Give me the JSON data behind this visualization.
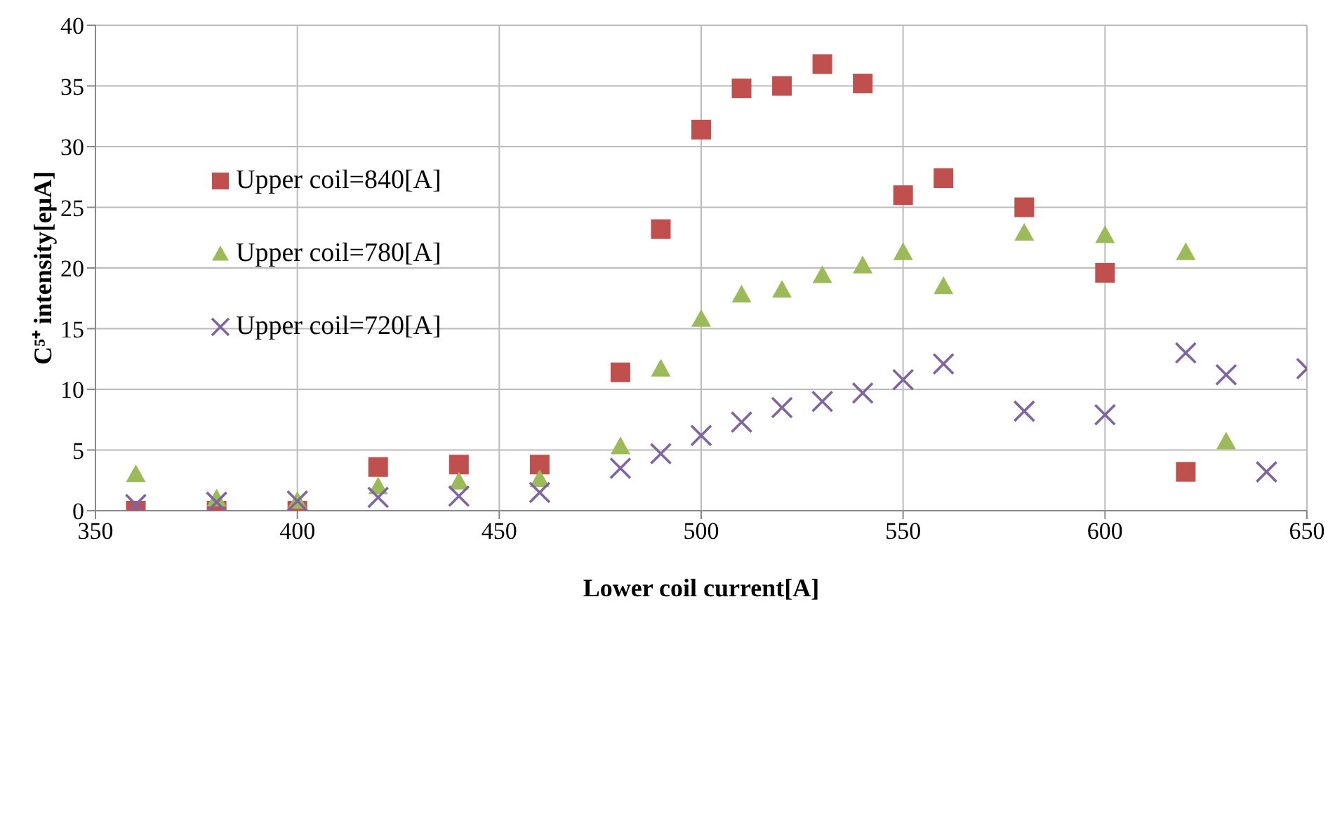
{
  "chart_data": {
    "type": "scatter",
    "xlabel": "Lower coil current[A]",
    "ylabel": "C⁵⁺ intensity[eμA]",
    "xlim": [
      350,
      650
    ],
    "xticks": [
      350,
      400,
      450,
      500,
      550,
      600,
      650
    ],
    "ylim": [
      0,
      40
    ],
    "yticks": [
      0,
      5,
      10,
      15,
      20,
      25,
      30,
      35,
      40
    ],
    "grid": true,
    "legend": "left",
    "series": [
      {
        "name": "Upper coil=840[A]",
        "color": "#c0504d",
        "marker": "square",
        "x": [
          360,
          380,
          400,
          420,
          440,
          460,
          480,
          490,
          500,
          510,
          520,
          530,
          540,
          550,
          560,
          580,
          600,
          620
        ],
        "values": [
          0,
          0,
          0,
          3.6,
          3.8,
          3.8,
          11.4,
          23.2,
          31.4,
          34.8,
          35.0,
          36.8,
          35.2,
          26.0,
          27.4,
          25.0,
          19.6,
          3.2
        ]
      },
      {
        "name": "Upper coil=780[A]",
        "color": "#9bbb59",
        "marker": "triangle",
        "x": [
          360,
          380,
          400,
          420,
          440,
          460,
          480,
          490,
          500,
          510,
          520,
          530,
          540,
          550,
          560,
          580,
          600,
          620,
          630
        ],
        "values": [
          3.0,
          1.0,
          0.8,
          2.0,
          2.4,
          2.6,
          5.3,
          11.7,
          15.8,
          17.8,
          18.2,
          19.4,
          20.2,
          21.3,
          18.5,
          22.9,
          22.7,
          21.3,
          5.7
        ]
      },
      {
        "name": "Upper coil=720[A]",
        "color": "#8064a2",
        "marker": "cross",
        "x": [
          360,
          380,
          400,
          420,
          440,
          460,
          480,
          490,
          500,
          510,
          520,
          530,
          540,
          550,
          560,
          580,
          600,
          620,
          630,
          640,
          650
        ],
        "values": [
          0.5,
          0.7,
          0.8,
          1.1,
          1.2,
          1.5,
          3.5,
          4.7,
          6.2,
          7.3,
          8.5,
          9.0,
          9.7,
          10.8,
          12.1,
          8.2,
          7.9,
          13.0,
          11.2,
          3.2,
          11.7
        ]
      }
    ]
  }
}
